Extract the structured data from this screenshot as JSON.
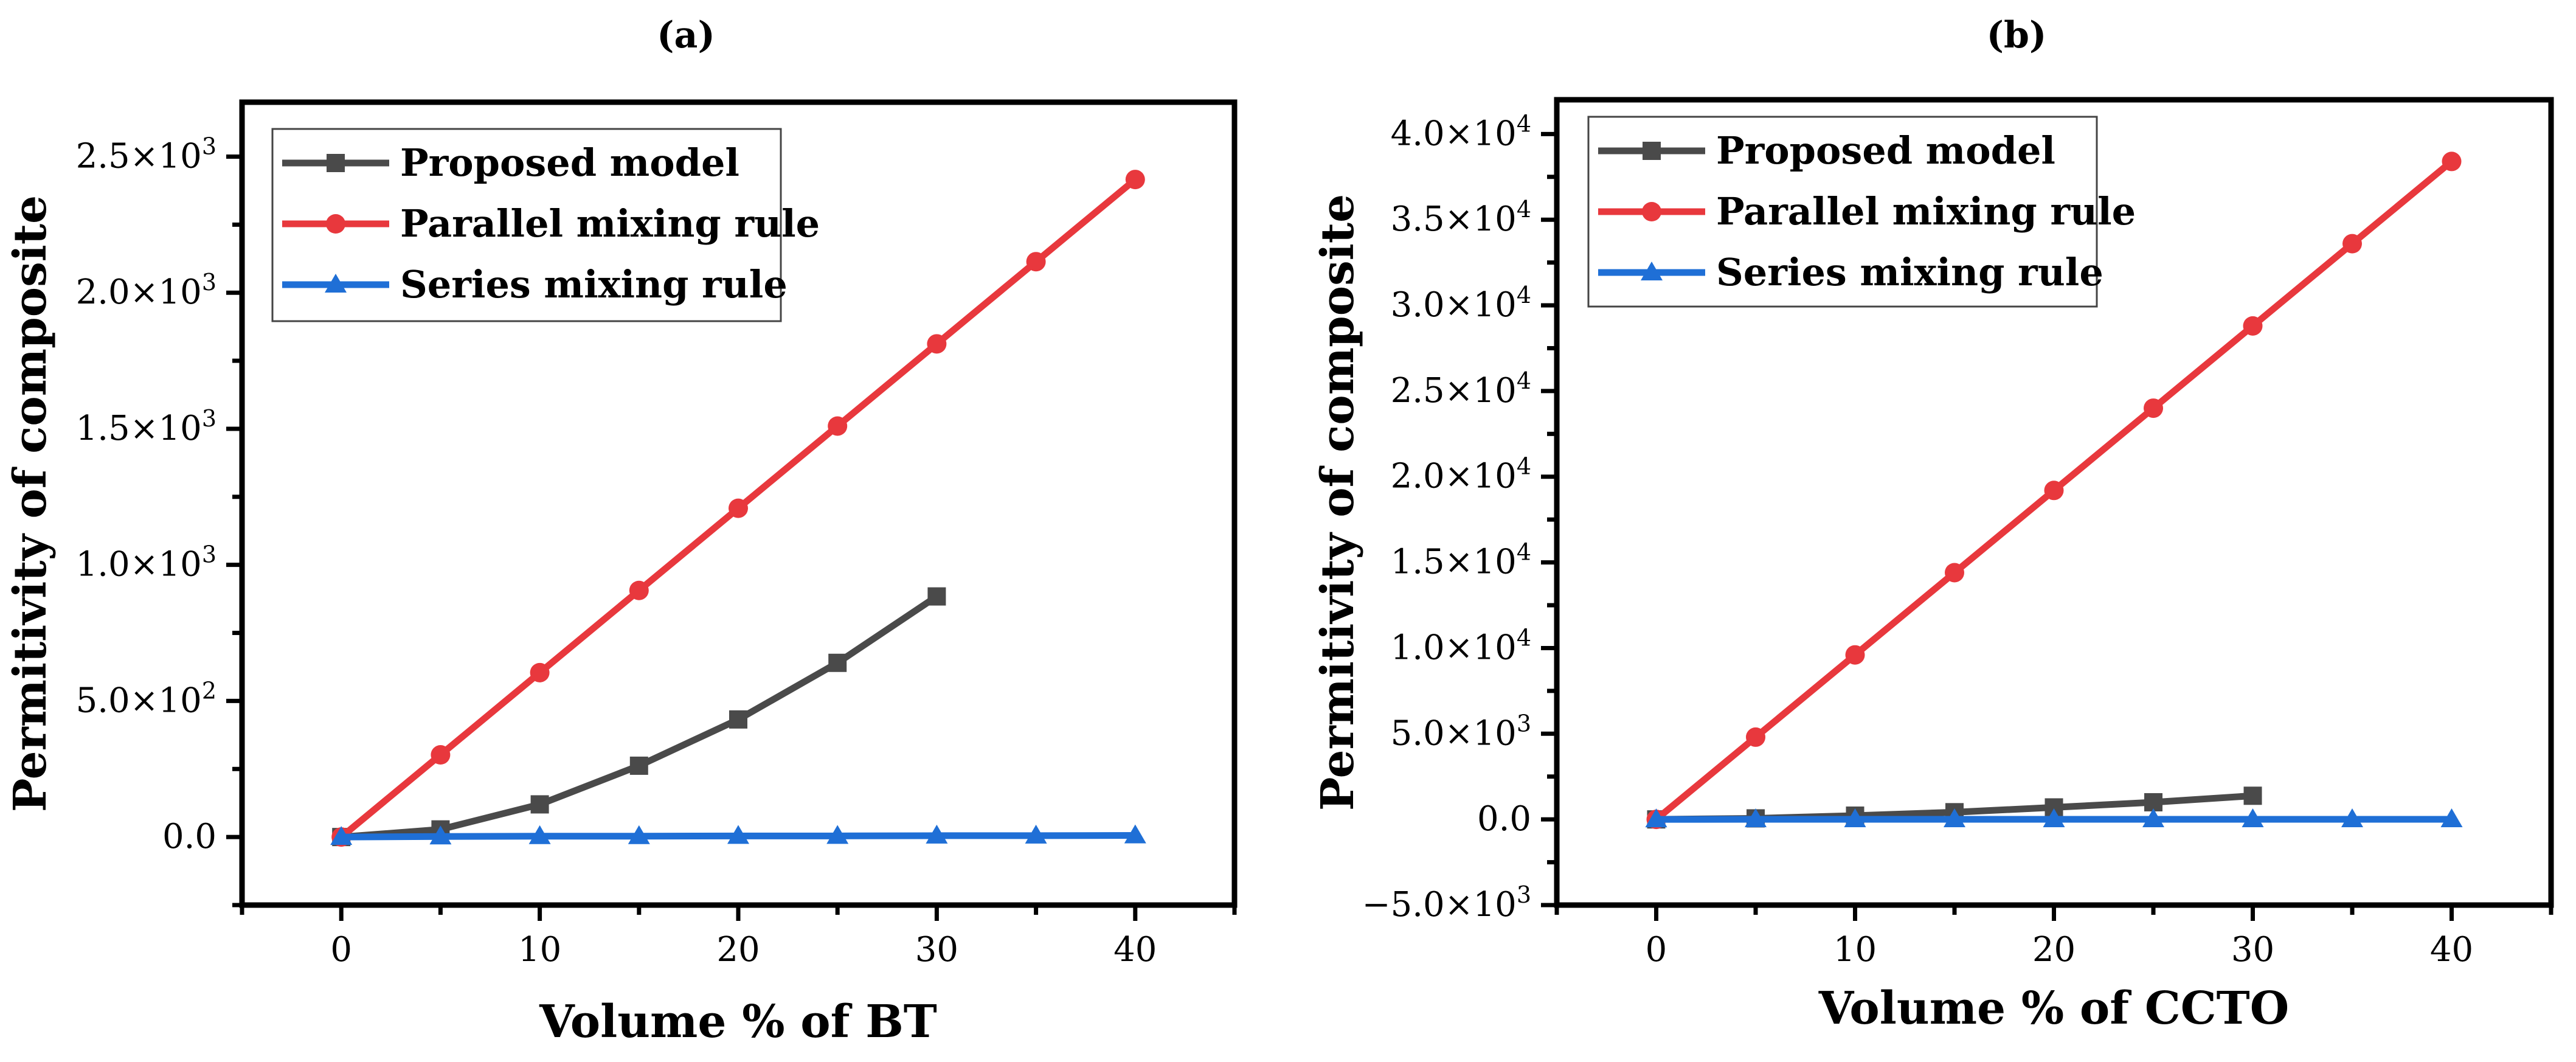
{
  "chart_data": [
    {
      "type": "line",
      "panel_label": "(a)",
      "xlabel": "Volume % of BT",
      "ylabel": "Permitivity of composite",
      "xlim": [
        -5,
        45
      ],
      "ylim": [
        -250,
        2700
      ],
      "x_ticks": [
        0,
        10,
        20,
        30,
        40
      ],
      "x_tick_labels": [
        "0",
        "10",
        "20",
        "30",
        "40"
      ],
      "y_ticks": [
        0,
        500,
        1000,
        1500,
        2000,
        2500
      ],
      "y_tick_labels": [
        {
          "mant": "0.0",
          "exp": ""
        },
        {
          "mant": "5.0×10",
          "exp": "2"
        },
        {
          "mant": "1.0×10",
          "exp": "3"
        },
        {
          "mant": "1.5×10",
          "exp": "3"
        },
        {
          "mant": "2.0×10",
          "exp": "3"
        },
        {
          "mant": "2.5×10",
          "exp": "3"
        }
      ],
      "grid": false,
      "legend_position": "top-left",
      "series": [
        {
          "name": "Proposed model",
          "color": "#4a4a4a",
          "marker": "square",
          "x": [
            0,
            5,
            10,
            15,
            20,
            25,
            30
          ],
          "y": [
            0,
            28,
            120,
            262,
            432,
            640,
            884
          ]
        },
        {
          "name": "Parallel mixing rule",
          "color": "#e8383d",
          "marker": "circle",
          "x": [
            0,
            5,
            10,
            15,
            20,
            25,
            30,
            35,
            40
          ],
          "y": [
            0,
            302,
            604,
            906,
            1208,
            1510,
            1812,
            2114,
            2416
          ]
        },
        {
          "name": "Series mixing rule",
          "color": "#1f6fd6",
          "marker": "triangle",
          "x": [
            0,
            5,
            10,
            15,
            20,
            25,
            30,
            35,
            40
          ],
          "y": [
            0,
            2,
            3,
            3,
            4,
            4,
            5,
            5,
            6
          ]
        }
      ]
    },
    {
      "type": "line",
      "panel_label": "(b)",
      "xlabel": "Volume % of CCTO",
      "ylabel": "Permitivity of composite",
      "xlim": [
        -5,
        45
      ],
      "ylim": [
        -5000,
        42000
      ],
      "x_ticks": [
        0,
        10,
        20,
        30,
        40
      ],
      "x_tick_labels": [
        "0",
        "10",
        "20",
        "30",
        "40"
      ],
      "y_ticks": [
        -5000,
        0,
        5000,
        10000,
        15000,
        20000,
        25000,
        30000,
        35000,
        40000
      ],
      "y_tick_labels": [
        {
          "mant": "−5.0×10",
          "exp": "3"
        },
        {
          "mant": "0.0",
          "exp": ""
        },
        {
          "mant": "5.0×10",
          "exp": "3"
        },
        {
          "mant": "1.0×10",
          "exp": "4"
        },
        {
          "mant": "1.5×10",
          "exp": "4"
        },
        {
          "mant": "2.0×10",
          "exp": "4"
        },
        {
          "mant": "2.5×10",
          "exp": "4"
        },
        {
          "mant": "3.0×10",
          "exp": "4"
        },
        {
          "mant": "3.5×10",
          "exp": "4"
        },
        {
          "mant": "4.0×10",
          "exp": "4"
        }
      ],
      "grid": false,
      "legend_position": "top-left",
      "series": [
        {
          "name": "Proposed model",
          "color": "#4a4a4a",
          "marker": "square",
          "x": [
            0,
            5,
            10,
            15,
            20,
            25,
            30
          ],
          "y": [
            0,
            60,
            220,
            420,
            700,
            1000,
            1380
          ]
        },
        {
          "name": "Parallel mixing rule",
          "color": "#e8383d",
          "marker": "circle",
          "x": [
            0,
            5,
            10,
            15,
            20,
            25,
            30,
            35,
            40
          ],
          "y": [
            0,
            4800,
            9600,
            14400,
            19200,
            24000,
            28800,
            33600,
            38400
          ]
        },
        {
          "name": "Series mixing rule",
          "color": "#1f6fd6",
          "marker": "triangle",
          "x": [
            0,
            5,
            10,
            15,
            20,
            25,
            30,
            35,
            40
          ],
          "y": [
            0,
            5,
            5,
            5,
            6,
            6,
            6,
            6,
            7
          ]
        }
      ]
    }
  ]
}
